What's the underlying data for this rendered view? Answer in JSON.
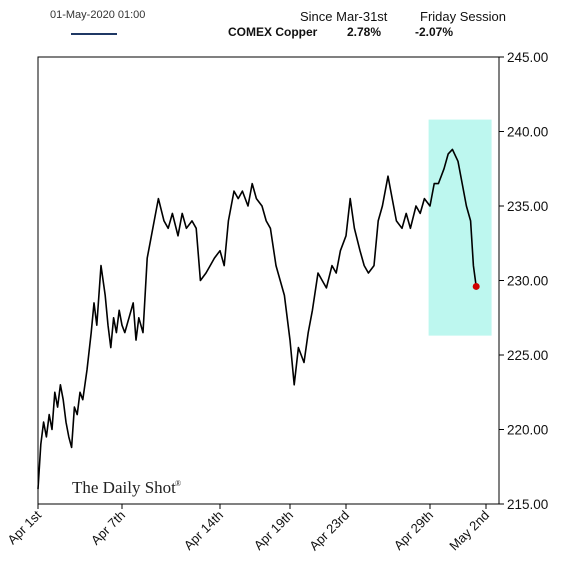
{
  "header": {
    "date_text": "01-May-2020 01:00",
    "since_label": "Since Mar-31st",
    "friday_label": "Friday Session",
    "series_label": "COMEX Copper",
    "since_value": "2.78%",
    "friday_value": "-2.07%"
  },
  "watermark": "The Daily Shot",
  "watermark_mark": "®",
  "colors": {
    "line": "#000000",
    "legend_line": "#1f3864",
    "highlight": "#bdf7ef",
    "end_marker": "#d00000",
    "frame": "#000000"
  },
  "chart_data": {
    "type": "line",
    "title": "",
    "xlabel": "",
    "ylabel": "",
    "ylim": [
      215,
      245
    ],
    "yticks": [
      "215.00",
      "220.00",
      "225.00",
      "230.00",
      "235.00",
      "240.00",
      "245.00"
    ],
    "ytick_values": [
      215,
      220,
      225,
      230,
      235,
      240,
      245
    ],
    "x_tick_labels": [
      "Apr 1st",
      "Apr 7th",
      "Apr 14th",
      "Apr 19th",
      "Apr 23rd",
      "Apr 29th",
      "May 2nd"
    ],
    "x_tick_days": [
      1,
      7,
      14,
      19,
      23,
      29,
      33
    ],
    "xlim_days": [
      1,
      33
    ],
    "highlight_span_days": [
      28.9,
      33.4
    ],
    "highlight_y_range": [
      226.3,
      240.8
    ],
    "series": [
      {
        "x_days": [
          1.0,
          1.2,
          1.4,
          1.6,
          1.8,
          2.0,
          2.2,
          2.4,
          2.6,
          2.8,
          3.0,
          3.2,
          3.4,
          3.6,
          3.8,
          4.0,
          4.2,
          4.5,
          4.8,
          5.0,
          5.2,
          5.5,
          5.8,
          6.0,
          6.2,
          6.4,
          6.6,
          6.8,
          7.0,
          7.2,
          7.5,
          7.8,
          8.0,
          8.2,
          8.5,
          8.8,
          9.0,
          9.3,
          9.6,
          10.0,
          10.3,
          10.6,
          11.0,
          11.3,
          11.6,
          12.0,
          12.3,
          12.6,
          13.0,
          13.3,
          13.6,
          14.0,
          14.3,
          14.6,
          15.0,
          15.3,
          15.6,
          16.0,
          16.3,
          16.6,
          17.0,
          17.3,
          17.6,
          18.0,
          18.3,
          18.6,
          19.0,
          19.3,
          19.6,
          20.0,
          20.3,
          20.6,
          21.0,
          21.3,
          21.6,
          22.0,
          22.3,
          22.6,
          23.0,
          23.3,
          23.6,
          24.0,
          24.3,
          24.6,
          25.0,
          25.3,
          25.6,
          26.0,
          26.3,
          26.6,
          27.0,
          27.3,
          27.6,
          28.0,
          28.3,
          28.6,
          29.0,
          29.3,
          29.6,
          30.0,
          30.3,
          30.6,
          31.0,
          31.3,
          31.6,
          31.9,
          32.1,
          32.3
        ],
        "values": [
          216.0,
          219.0,
          220.5,
          219.5,
          221.0,
          220.0,
          222.5,
          221.5,
          223.0,
          222.0,
          220.5,
          219.5,
          218.8,
          221.5,
          221.0,
          222.5,
          222.0,
          224.0,
          226.5,
          228.5,
          227.0,
          231.0,
          229.0,
          227.0,
          225.5,
          227.5,
          226.5,
          228.0,
          227.0,
          226.5,
          227.5,
          228.5,
          226.0,
          227.5,
          226.5,
          231.5,
          232.5,
          234.0,
          235.5,
          234.0,
          233.5,
          234.5,
          233.0,
          234.5,
          233.5,
          234.0,
          233.5,
          230.0,
          230.5,
          231.0,
          231.5,
          232.0,
          231.0,
          234.0,
          236.0,
          235.5,
          236.0,
          235.0,
          236.5,
          235.5,
          235.0,
          234.0,
          233.5,
          231.0,
          230.0,
          229.0,
          226.0,
          223.0,
          225.5,
          224.5,
          226.5,
          228.0,
          230.5,
          230.0,
          229.5,
          231.0,
          230.5,
          232.0,
          233.0,
          235.5,
          233.5,
          232.0,
          231.0,
          230.5,
          231.0,
          234.0,
          235.0,
          237.0,
          235.5,
          234.0,
          233.5,
          234.5,
          233.5,
          235.0,
          234.5,
          235.5,
          235.0,
          236.5,
          236.5,
          237.5,
          238.5,
          238.8,
          238.0,
          236.5,
          235.0,
          234.0,
          231.0,
          229.6
        ]
      }
    ],
    "last_point": {
      "x_day": 32.3,
      "value": 229.6
    }
  }
}
